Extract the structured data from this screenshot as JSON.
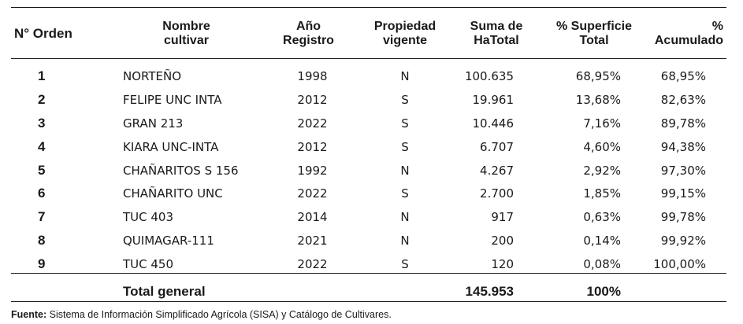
{
  "table": {
    "headers": [
      "N° Orden",
      "Nombre cultivar",
      "Año Registro",
      "Propiedad vigente",
      "Suma de HaTotal",
      "% Superficie Total",
      "% Acumulado"
    ],
    "rows": [
      {
        "orden": "1",
        "nombre": "NORTEÑO",
        "anio": "1998",
        "propiedad": "N",
        "ha": "100.635",
        "superficie": "68,95%",
        "acumulado": "68,95%"
      },
      {
        "orden": "2",
        "nombre": "FELIPE UNC INTA",
        "anio": "2012",
        "propiedad": "S",
        "ha": "19.961",
        "superficie": "13,68%",
        "acumulado": "82,63%"
      },
      {
        "orden": "3",
        "nombre": "GRAN 213",
        "anio": "2022",
        "propiedad": "S",
        "ha": "10.446",
        "superficie": "7,16%",
        "acumulado": "89,78%"
      },
      {
        "orden": "4",
        "nombre": "KIARA UNC-INTA",
        "anio": "2012",
        "propiedad": "S",
        "ha": "6.707",
        "superficie": "4,60%",
        "acumulado": "94,38%"
      },
      {
        "orden": "5",
        "nombre": "CHAÑARITOS S 156",
        "anio": "1992",
        "propiedad": "N",
        "ha": "4.267",
        "superficie": "2,92%",
        "acumulado": "97,30%"
      },
      {
        "orden": "6",
        "nombre": "CHAÑARITO UNC",
        "anio": "2022",
        "propiedad": "S",
        "ha": "2.700",
        "superficie": "1,85%",
        "acumulado": "99,15%"
      },
      {
        "orden": "7",
        "nombre": "TUC 403",
        "anio": "2014",
        "propiedad": "N",
        "ha": "917",
        "superficie": "0,63%",
        "acumulado": "99,78%"
      },
      {
        "orden": "8",
        "nombre": "QUIMAGAR-111",
        "anio": "2021",
        "propiedad": "N",
        "ha": "200",
        "superficie": "0,14%",
        "acumulado": "99,92%"
      },
      {
        "orden": "9",
        "nombre": "TUC 450",
        "anio": "2022",
        "propiedad": "S",
        "ha": "120",
        "superficie": "0,08%",
        "acumulado": "100,00%"
      }
    ],
    "total": {
      "label": "Total general",
      "ha": "145.953",
      "superficie": "100%"
    }
  },
  "source": {
    "label": "Fuente:",
    "text": " Sistema de Información Simplificado Agrícola (SISA) y Catálogo de Cultivares."
  }
}
